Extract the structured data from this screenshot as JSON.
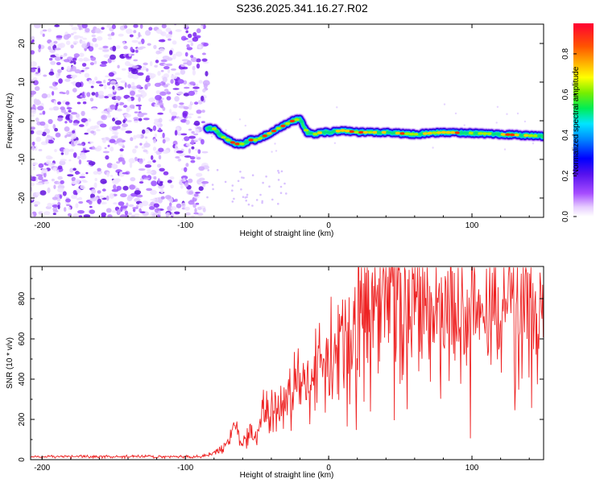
{
  "title": "S236.2025.341.16.27.R02",
  "chart_data": [
    {
      "type": "heatmap",
      "xlabel": "Height of straight line (km)",
      "ylabel": "Frequency (Hz)",
      "xlim": [
        -208,
        150
      ],
      "ylim": [
        -25,
        25
      ],
      "x_ticks": [
        -200,
        -100,
        0,
        100
      ],
      "y_ticks": [
        -20,
        -10,
        0,
        10,
        20
      ],
      "noise_region_x": [
        -208,
        -85
      ],
      "ridge": {
        "x": [
          -85,
          -80,
          -75,
          -70,
          -65,
          -60,
          -55,
          -50,
          -45,
          -40,
          -35,
          -30,
          -25,
          -20,
          -15,
          -10,
          -5,
          0,
          10,
          20,
          40,
          60,
          80,
          100,
          120,
          150
        ],
        "y": [
          -2,
          -2,
          -4,
          -5,
          -6,
          -6,
          -5,
          -5,
          -4,
          -3,
          -2,
          -1,
          0,
          0.5,
          -3,
          -3.5,
          -3,
          -3,
          -2.5,
          -3,
          -3,
          -3.5,
          -3,
          -3.2,
          -3.5,
          -4
        ]
      },
      "colorbar": {
        "label": "Normalized spectral amplitude",
        "ticks": [
          0.0,
          0.2,
          0.4,
          0.6,
          0.8
        ],
        "tick_labels": [
          "0.0",
          "0.2",
          "0.4",
          "0.6",
          "0.8"
        ],
        "max": 0.95
      }
    },
    {
      "type": "line",
      "xlabel": "Height of straight line (km)",
      "ylabel": "SNR (10 * v/v)",
      "xlim": [
        -208,
        150
      ],
      "ylim": [
        0,
        960
      ],
      "x_ticks": [
        -200,
        -100,
        0,
        100
      ],
      "y_ticks": [
        0,
        200,
        400,
        600,
        800
      ],
      "series": [
        {
          "name": "SNR",
          "color": "#ee2222",
          "x": [
            -208,
            -180,
            -150,
            -120,
            -100,
            -90,
            -80,
            -75,
            -70,
            -66,
            -62,
            -60,
            -55,
            -50,
            -45,
            -40,
            -35,
            -30,
            -25,
            -20,
            -15,
            -10,
            -5,
            0,
            5,
            10,
            15,
            20,
            25,
            30,
            40,
            50,
            60,
            70,
            80,
            90,
            100,
            110,
            120,
            130,
            140,
            150
          ],
          "y": [
            15,
            15,
            15,
            15,
            15,
            15,
            30,
            50,
            90,
            200,
            100,
            60,
            150,
            120,
            250,
            230,
            270,
            300,
            330,
            380,
            400,
            450,
            470,
            530,
            600,
            630,
            700,
            740,
            760,
            770,
            780,
            770,
            790,
            780,
            770,
            760,
            780,
            760,
            740,
            760,
            750,
            780
          ],
          "spread": [
            8,
            8,
            8,
            8,
            8,
            8,
            15,
            25,
            40,
            60,
            50,
            40,
            80,
            100,
            130,
            150,
            160,
            180,
            200,
            220,
            240,
            260,
            280,
            300,
            320,
            340,
            360,
            380,
            390,
            400,
            400,
            400,
            400,
            400,
            400,
            400,
            400,
            400,
            420,
            420,
            420,
            420
          ]
        }
      ]
    }
  ]
}
